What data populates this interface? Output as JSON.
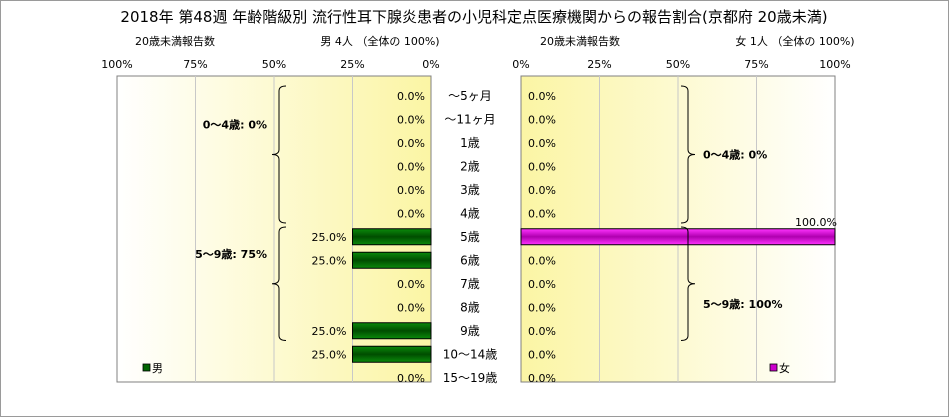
{
  "chart_data": {
    "type": "bar",
    "title": "2018年  第48週  年齢階級別  流行性耳下腺炎患者の小児科定点医療機関からの報告割合(京都府 20歳未満)",
    "categories": [
      "～5ヶ月",
      "～11ヶ月",
      "1歳",
      "2歳",
      "3歳",
      "4歳",
      "5歳",
      "6歳",
      "7歳",
      "8歳",
      "9歳",
      "10～14歳",
      "15～19歳"
    ],
    "left_panel": {
      "subtitle_left": "20歳未満報告数",
      "subtitle_right": "男  4人  （全体の  100%)",
      "axis_ticks": [
        "100%",
        "75%",
        "50%",
        "25%",
        "0%"
      ],
      "xlim": [
        0,
        100
      ],
      "legend_label": "男",
      "series": [
        {
          "name": "男",
          "color": "#006400",
          "values": [
            0,
            0,
            0,
            0,
            0,
            0,
            25,
            25,
            0,
            0,
            25,
            25,
            0
          ],
          "labels": [
            "0.0%",
            "0.0%",
            "0.0%",
            "0.0%",
            "0.0%",
            "0.0%",
            "25.0%",
            "25.0%",
            "0.0%",
            "0.0%",
            "25.0%",
            "25.0%",
            "0.0%"
          ]
        }
      ],
      "groups": [
        {
          "label": "0～4歳: 0%",
          "from": 0,
          "to": 5
        },
        {
          "label": "5～9歳: 75%",
          "from": 6,
          "to": 10
        }
      ]
    },
    "right_panel": {
      "subtitle_left": "20歳未満報告数",
      "subtitle_right": "女   1人  （全体の   100%)",
      "axis_ticks": [
        "0%",
        "25%",
        "50%",
        "75%",
        "100%"
      ],
      "xlim": [
        0,
        100
      ],
      "legend_label": "女",
      "series": [
        {
          "name": "女",
          "color": "#cc00cc",
          "values": [
            0,
            0,
            0,
            0,
            0,
            0,
            100,
            0,
            0,
            0,
            0,
            0,
            0
          ],
          "labels": [
            "0.0%",
            "0.0%",
            "0.0%",
            "0.0%",
            "0.0%",
            "0.0%",
            "100.0%",
            "0.0%",
            "0.0%",
            "0.0%",
            "0.0%",
            "0.0%",
            "0.0%"
          ]
        }
      ],
      "groups": [
        {
          "label": "0～4歳: 0%",
          "from": 0,
          "to": 5
        },
        {
          "label": "5～9歳: 100%",
          "from": 6,
          "to": 10
        }
      ]
    }
  }
}
